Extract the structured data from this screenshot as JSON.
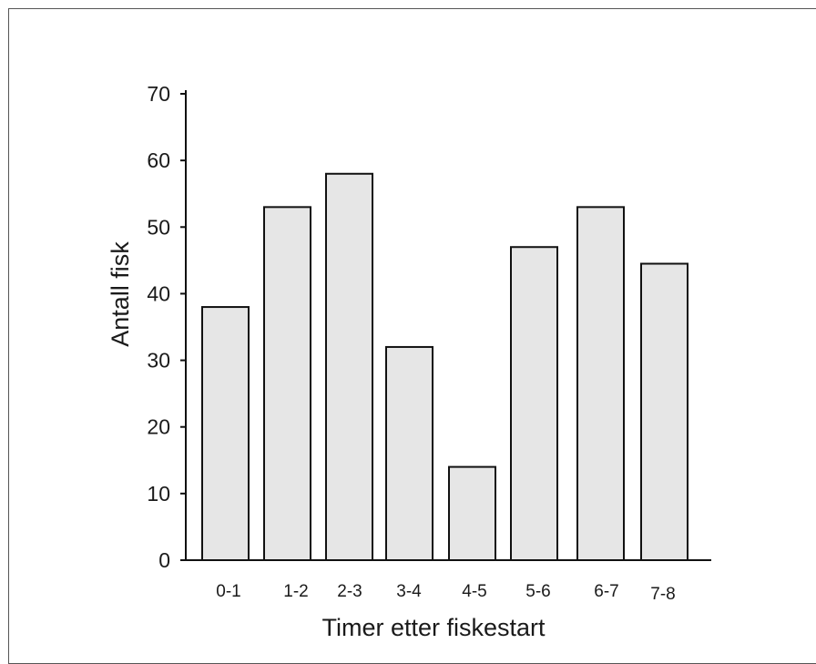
{
  "chart_data": {
    "type": "bar",
    "title": "",
    "xlabel": "Timer etter fiskestart",
    "ylabel": "Antall fisk",
    "categories": [
      "0-1",
      "1-2",
      "2-3",
      "3-4",
      "4-5",
      "5-6",
      "6-7",
      "7-8"
    ],
    "values": [
      38,
      53,
      58,
      32,
      14,
      47,
      53,
      44.5
    ],
    "ylim": [
      0,
      70
    ],
    "yticks": [
      0,
      10,
      20,
      30,
      40,
      50,
      60,
      70
    ],
    "grid": false,
    "legend": "none"
  },
  "colors": {
    "bar_fill": "#e6e6e6",
    "bar_stroke": "#111111",
    "axis": "#111111"
  }
}
